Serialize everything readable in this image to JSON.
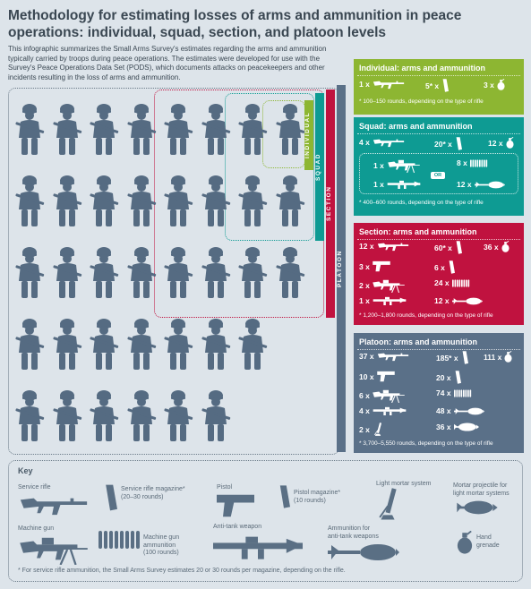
{
  "title": "Methodology for estimating losses of arms and ammunition in peace operations: individual, squad, section, and platoon levels",
  "intro": "This infographic summarizes the Small Arms Survey's estimates regarding the arms and ammunition typically carried by troops during peace operations. The estimates were developed for use with the Survey's Peace Operations Data Set (PODS), which documents attacks on peacekeepers and other incidents resulting in the loss of arms and ammunition.",
  "levels": {
    "individual": "INDIVIDUAL",
    "squad": "SQUAD",
    "section": "SECTION",
    "platoon": "PLATOON"
  },
  "colors": {
    "individual": "#8db632",
    "squad": "#0e9b93",
    "section": "#c0123f",
    "platoon": "#5a7088",
    "soldier": "#556b82"
  },
  "panels": {
    "individual": {
      "title": "Individual: arms and ammunition",
      "items": [
        "1 x",
        "5* x",
        "3 x"
      ],
      "note": "* 100–150 rounds, depending on the type of rifle"
    },
    "squad": {
      "title": "Squad: arms and ammunition",
      "items": [
        "4 x",
        "20* x",
        "12 x"
      ],
      "sub": [
        "1 x",
        "8 x",
        "1 x",
        "12 x"
      ],
      "or": "OR",
      "note": "* 400–600 rounds, depending on the type of rifle"
    },
    "section": {
      "title": "Section: arms and ammunition",
      "items": [
        "12 x",
        "60* x",
        "36 x",
        "3 x",
        "6 x",
        "2 x",
        "24 x",
        "1 x",
        "12 x"
      ],
      "note": "* 1,200–1,800 rounds, depending on the type of rifle"
    },
    "platoon": {
      "title": "Platoon: arms and ammunition",
      "items": [
        "37 x",
        "185* x",
        "111 x",
        "10 x",
        "20 x",
        "6 x",
        "74 x",
        "4 x",
        "48 x",
        "2 x",
        "36 x"
      ],
      "note": "* 3,700–5,550 rounds, depending on the type of rifle"
    }
  },
  "key": {
    "title": "Key",
    "service_rifle": "Service rifle",
    "rifle_magazine": "Service rifle magazine*\n(20–30 rounds)",
    "pistol": "Pistol",
    "pistol_magazine": "Pistol magazine*\n(10 rounds)",
    "light_mortar": "Light mortar system",
    "mortar_projectile": "Mortar projectile for\nlight mortar systems",
    "machine_gun": "Machine gun",
    "mg_ammo": "Machine gun\nammunition\n(100 rounds)",
    "anti_tank": "Anti-tank weapon",
    "at_ammo": "Ammunition for\nanti-tank weapons",
    "hand_grenade": "Hand\ngrenade",
    "footnote": "* For service rifle ammunition, the Small Arms Survey estimates 20 or 30 rounds per magazine, depending on the rifle."
  }
}
